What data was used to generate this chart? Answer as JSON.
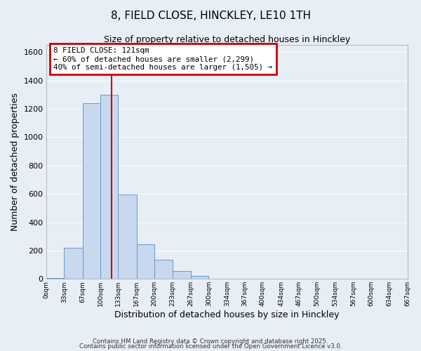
{
  "title": "8, FIELD CLOSE, HINCKLEY, LE10 1TH",
  "subtitle": "Size of property relative to detached houses in Hinckley",
  "xlabel": "Distribution of detached houses by size in Hinckley",
  "ylabel": "Number of detached properties",
  "bar_color": "#c8d8ee",
  "bar_edge_color": "#6699cc",
  "background_color": "#e8eef5",
  "grid_color": "#ffffff",
  "bin_edges": [
    0,
    33,
    67,
    100,
    133,
    167,
    200,
    233,
    267,
    300,
    334,
    367,
    400,
    434,
    467,
    500,
    534,
    567,
    600,
    634,
    667
  ],
  "bar_heights": [
    5,
    220,
    1240,
    1300,
    595,
    245,
    135,
    55,
    20,
    0,
    0,
    0,
    0,
    0,
    0,
    0,
    0,
    0,
    0,
    0
  ],
  "tick_labels": [
    "0sqm",
    "33sqm",
    "67sqm",
    "100sqm",
    "133sqm",
    "167sqm",
    "200sqm",
    "233sqm",
    "267sqm",
    "300sqm",
    "334sqm",
    "367sqm",
    "400sqm",
    "434sqm",
    "467sqm",
    "500sqm",
    "534sqm",
    "567sqm",
    "600sqm",
    "634sqm",
    "667sqm"
  ],
  "vline_x": 121,
  "vline_color": "#cc0000",
  "ylim": [
    0,
    1650
  ],
  "yticks": [
    0,
    200,
    400,
    600,
    800,
    1000,
    1200,
    1400,
    1600
  ],
  "annotation_title": "8 FIELD CLOSE: 121sqm",
  "annotation_line1": "← 60% of detached houses are smaller (2,299)",
  "annotation_line2": "40% of semi-detached houses are larger (1,505) →",
  "annotation_box_color": "#ffffff",
  "annotation_box_edge_color": "#cc0000",
  "footnote1": "Contains HM Land Registry data © Crown copyright and database right 2025.",
  "footnote2": "Contains public sector information licensed under the Open Government Licence v3.0."
}
